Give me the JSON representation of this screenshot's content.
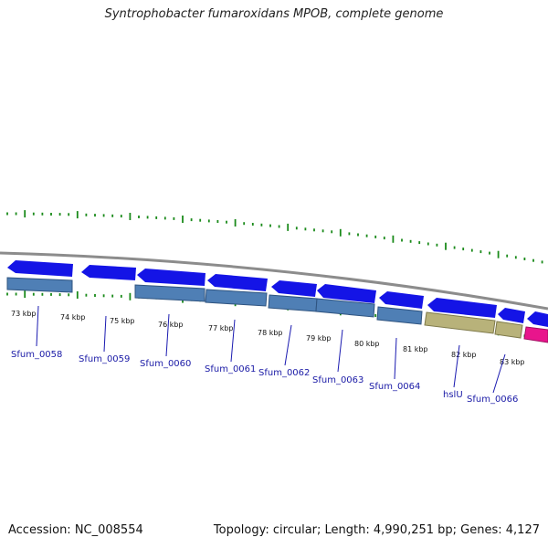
{
  "title": "Syntrophobacter fumaroxidans MPOB, complete genome",
  "footer": {
    "accession": "Accession: NC_008554",
    "topology": "Topology: circular; Length: 4,990,251 bp; Genes: 4,127"
  },
  "colors": {
    "backbone": "#8c8c8c",
    "forward_cds": "#1414e6",
    "reverse_gene": "#4f7fb5",
    "khaki_gene": "#b8b27a",
    "pink_gene": "#e8158c",
    "tick": "#1a8a1a",
    "label_line": "#1a1ab0"
  },
  "kbp_labels": [
    "73 kbp",
    "74 kbp",
    "75 kbp",
    "76 kbp",
    "77 kbp",
    "78 kbp",
    "79 kbp",
    "80 kbp",
    "81 kbp",
    "82 kbp",
    "83 kbp"
  ],
  "gene_labels": [
    "Sfum_0058",
    "Sfum_0059",
    "Sfum_0060",
    "Sfum_0061",
    "Sfum_0062",
    "Sfum_0063",
    "Sfum_0064",
    "hslU",
    "Sfum_0066"
  ]
}
